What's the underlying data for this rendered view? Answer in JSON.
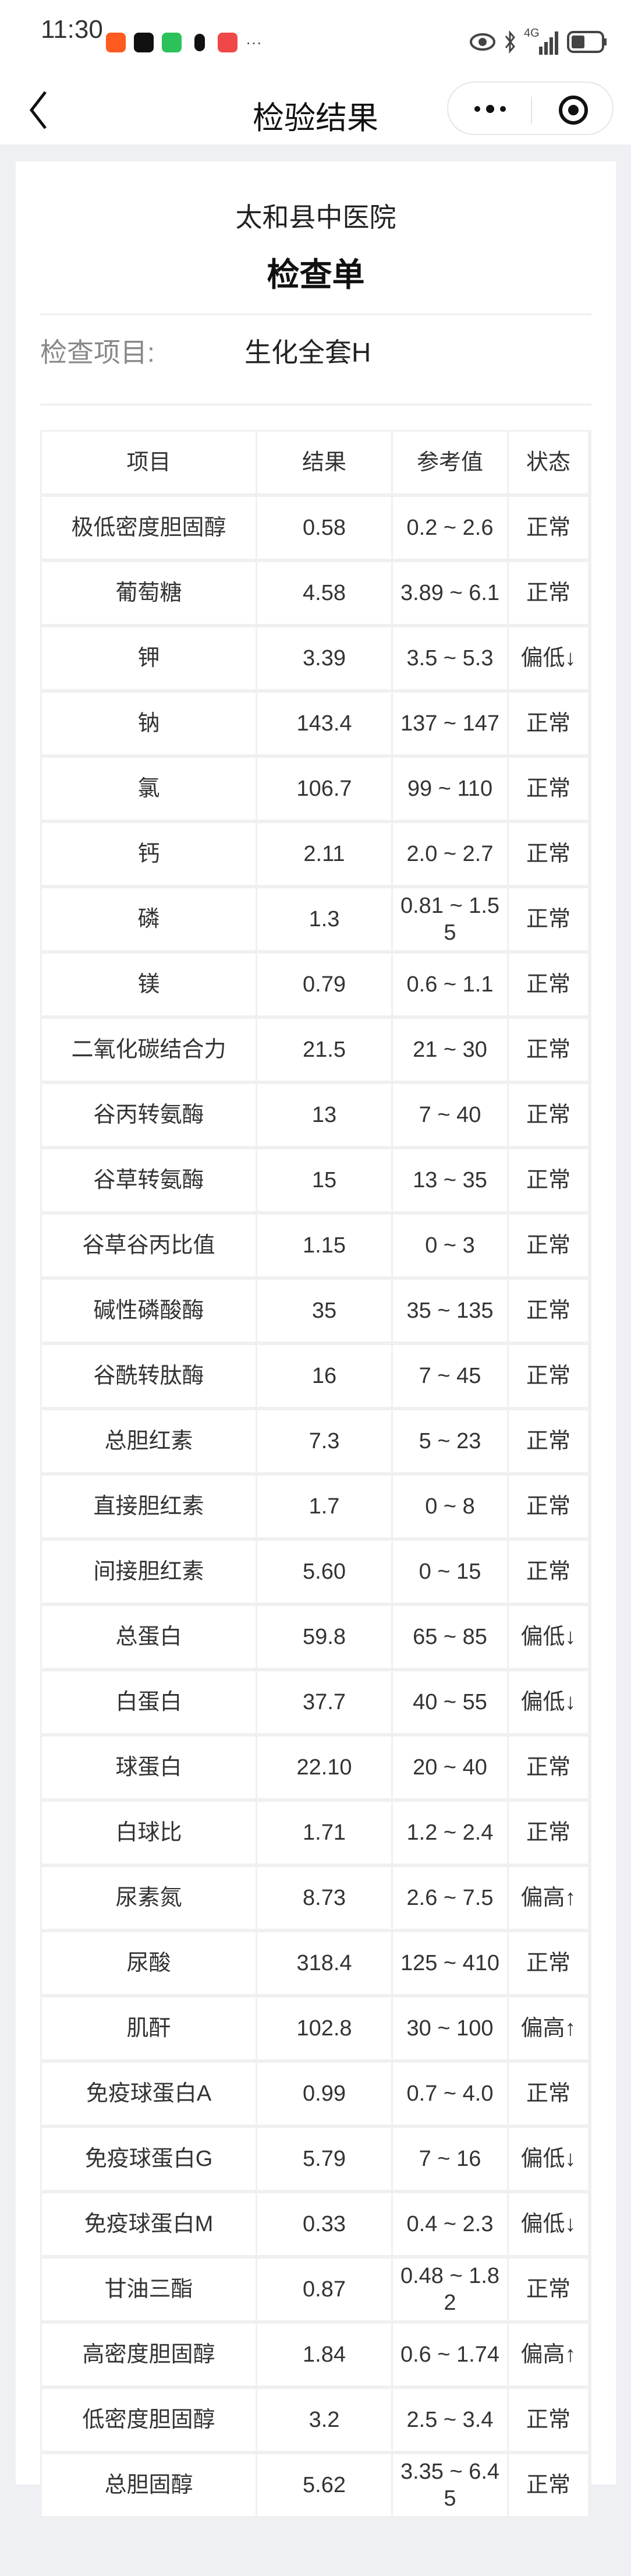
{
  "status_bar": {
    "time": "11:30",
    "icons": [
      "taobao-icon",
      "douyin-icon",
      "wechat-icon",
      "qq-icon",
      "huawei-appgallery-icon",
      "more-dots-icon",
      "eye-icon",
      "bluetooth-icon",
      "4g-signal-icon",
      "battery-icon"
    ],
    "network": "4G"
  },
  "nav": {
    "title": "检验结果"
  },
  "report": {
    "hospital": "太和县中医院",
    "form_title": "检查单",
    "item_label": "检查项目:",
    "item_value": "生化全套H"
  },
  "table": {
    "headers": [
      "项目",
      "结果",
      "参考值",
      "状态"
    ],
    "rows": [
      [
        "极低密度胆固醇",
        "0.58",
        "0.2 ~ 2.6",
        "正常"
      ],
      [
        "葡萄糖",
        "4.58",
        "3.89 ~ 6.1",
        "正常"
      ],
      [
        "钾",
        "3.39",
        "3.5 ~ 5.3",
        "偏低↓"
      ],
      [
        "钠",
        "143.4",
        "137 ~ 147",
        "正常"
      ],
      [
        "氯",
        "106.7",
        "99 ~ 110",
        "正常"
      ],
      [
        "钙",
        "2.11",
        "2.0 ~ 2.7",
        "正常"
      ],
      [
        "磷",
        "1.3",
        "0.81 ~ 1.55",
        "正常"
      ],
      [
        "镁",
        "0.79",
        "0.6 ~ 1.1",
        "正常"
      ],
      [
        "二氧化碳结合力",
        "21.5",
        "21 ~ 30",
        "正常"
      ],
      [
        "谷丙转氨酶",
        "13",
        "7 ~ 40",
        "正常"
      ],
      [
        "谷草转氨酶",
        "15",
        "13 ~ 35",
        "正常"
      ],
      [
        "谷草谷丙比值",
        "1.15",
        "0 ~ 3",
        "正常"
      ],
      [
        "碱性磷酸酶",
        "35",
        "35 ~ 135",
        "正常"
      ],
      [
        "谷酰转肽酶",
        "16",
        "7 ~ 45",
        "正常"
      ],
      [
        "总胆红素",
        "7.3",
        "5 ~ 23",
        "正常"
      ],
      [
        "直接胆红素",
        "1.7",
        "0 ~ 8",
        "正常"
      ],
      [
        "间接胆红素",
        "5.60",
        "0 ~ 15",
        "正常"
      ],
      [
        "总蛋白",
        "59.8",
        "65 ~ 85",
        "偏低↓"
      ],
      [
        "白蛋白",
        "37.7",
        "40 ~ 55",
        "偏低↓"
      ],
      [
        "球蛋白",
        "22.10",
        "20 ~ 40",
        "正常"
      ],
      [
        "白球比",
        "1.71",
        "1.2 ~ 2.4",
        "正常"
      ],
      [
        "尿素氮",
        "8.73",
        "2.6 ~ 7.5",
        "偏高↑"
      ],
      [
        "尿酸",
        "318.4",
        "125 ~ 410",
        "正常"
      ],
      [
        "肌酐",
        "102.8",
        "30 ~ 100",
        "偏高↑"
      ],
      [
        "免疫球蛋白A",
        "0.99",
        "0.7 ~ 4.0",
        "正常"
      ],
      [
        "免疫球蛋白G",
        "5.79",
        "7 ~ 16",
        "偏低↓"
      ],
      [
        "免疫球蛋白M",
        "0.33",
        "0.4 ~ 2.3",
        "偏低↓"
      ],
      [
        "甘油三酯",
        "0.87",
        "0.48 ~ 1.82",
        "正常"
      ],
      [
        "高密度胆固醇",
        "1.84",
        "0.6 ~ 1.74",
        "偏高↑"
      ],
      [
        "低密度胆固醇",
        "3.2",
        "2.5 ~ 3.4",
        "正常"
      ],
      [
        "总胆固醇",
        "5.62",
        "3.35 ~ 6.45",
        "正常"
      ]
    ]
  }
}
